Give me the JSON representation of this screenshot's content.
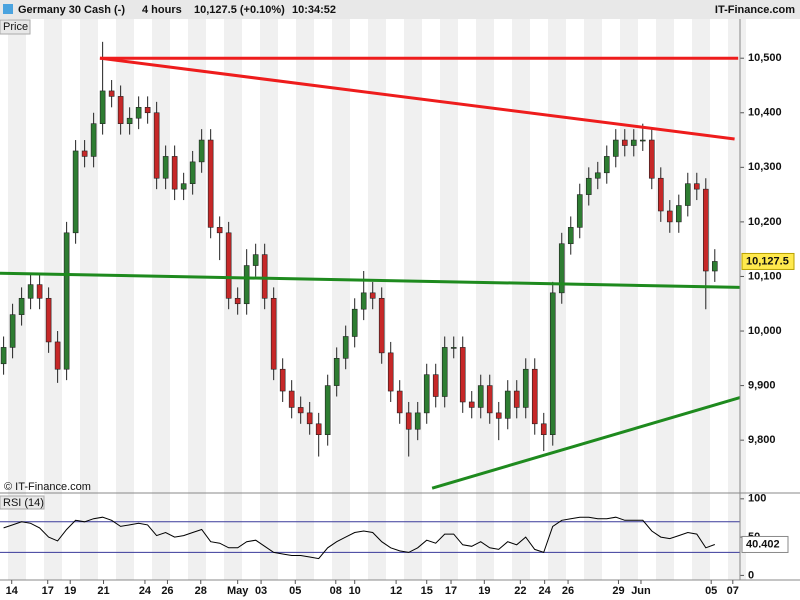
{
  "header": {
    "instrument": "Germany 30 Cash (-)",
    "interval": "4 hours",
    "quote": "10,127.5 (+0.10%)",
    "time": "10:34:52",
    "brand": "IT-Finance.com"
  },
  "chart_data": [
    {
      "type": "candlestick",
      "ylabel": "Price",
      "watermark": "© IT-Finance.com",
      "up_color": "#2e7d32",
      "down_color": "#c62828",
      "open": [
        9940,
        9970,
        10030,
        10060,
        10085,
        10060,
        9980,
        9930,
        10180,
        10330,
        10320,
        10380,
        10440,
        10430,
        10380,
        10390,
        10410,
        10400,
        10280,
        10320,
        10260,
        10270,
        10310,
        10350,
        10190,
        10180,
        10060,
        10050,
        10120,
        10140,
        10060,
        9930,
        9890,
        9860,
        9850,
        9830,
        9810,
        9900,
        9950,
        9990,
        10040,
        10070,
        10060,
        9960,
        9890,
        9850,
        9820,
        9850,
        9920,
        9880,
        9970,
        9970,
        9870,
        9860,
        9900,
        9850,
        9840,
        9890,
        9860,
        9930,
        9830,
        9810,
        10070,
        10160,
        10190,
        10250,
        10280,
        10290,
        10320,
        10350,
        10340,
        10350,
        10350,
        10280,
        10220,
        10200,
        10230,
        10270,
        10260,
        10110
      ],
      "high": [
        9990,
        10050,
        10080,
        10105,
        10105,
        10080,
        10000,
        10200,
        10350,
        10350,
        10400,
        10530,
        10460,
        10450,
        10410,
        10430,
        10430,
        10420,
        10340,
        10340,
        10290,
        10330,
        10370,
        10370,
        10210,
        10200,
        10080,
        10150,
        10160,
        10160,
        10080,
        9950,
        9910,
        9880,
        9870,
        9850,
        9920,
        9970,
        10010,
        10060,
        10110,
        10090,
        10080,
        9980,
        9910,
        9870,
        9870,
        9940,
        9940,
        9990,
        9990,
        9990,
        9890,
        9920,
        9920,
        9870,
        9910,
        9910,
        9950,
        9950,
        9850,
        10090,
        10180,
        10210,
        10270,
        10300,
        10310,
        10340,
        10370,
        10370,
        10370,
        10380,
        10370,
        10300,
        10240,
        10250,
        10290,
        10290,
        10280,
        10150
      ],
      "low": [
        9920,
        9950,
        10010,
        10040,
        10040,
        9960,
        9905,
        9910,
        10160,
        10300,
        10300,
        10360,
        10410,
        10360,
        10360,
        10370,
        10380,
        10260,
        10260,
        10240,
        10240,
        10250,
        10290,
        10170,
        10130,
        10040,
        10030,
        10030,
        10100,
        10040,
        9910,
        9870,
        9840,
        9830,
        9810,
        9770,
        9790,
        9880,
        9930,
        9970,
        10020,
        10040,
        9940,
        9870,
        9830,
        9770,
        9800,
        9830,
        9860,
        9860,
        9950,
        9850,
        9840,
        9840,
        9830,
        9800,
        9820,
        9840,
        9840,
        9810,
        9780,
        9790,
        10050,
        10140,
        10170,
        10230,
        10260,
        10270,
        10300,
        10320,
        10320,
        10330,
        10260,
        10200,
        10180,
        10180,
        10210,
        10240,
        10040,
        10090
      ],
      "close": [
        9970,
        10030,
        10060,
        10085,
        10060,
        9980,
        9930,
        10180,
        10330,
        10320,
        10380,
        10440,
        10430,
        10380,
        10390,
        10410,
        10400,
        10280,
        10320,
        10260,
        10270,
        10310,
        10350,
        10190,
        10180,
        10060,
        10050,
        10120,
        10140,
        10060,
        9930,
        9890,
        9860,
        9850,
        9830,
        9810,
        9900,
        9950,
        9990,
        10040,
        10070,
        10060,
        9960,
        9890,
        9850,
        9820,
        9850,
        9920,
        9880,
        9970,
        9970,
        9870,
        9860,
        9900,
        9850,
        9840,
        9890,
        9860,
        9930,
        9830,
        9810,
        10070,
        10160,
        10190,
        10250,
        10280,
        10290,
        10320,
        10350,
        10340,
        10350,
        10350,
        10280,
        10220,
        10200,
        10230,
        10270,
        10260,
        10110,
        10127.5
      ],
      "last_price": {
        "value": 10127.5,
        "label": "10,127.5"
      },
      "xlim": [
        -0.4,
        81.8
      ],
      "ylim": [
        9705,
        10570
      ],
      "yticks": [
        {
          "value": 9800,
          "label": "9,800"
        },
        {
          "value": 9900,
          "label": "9,900"
        },
        {
          "value": 10000,
          "label": "10,000"
        },
        {
          "value": 10100,
          "label": "10,100"
        },
        {
          "value": 10200,
          "label": "10,200"
        },
        {
          "value": 10300,
          "label": "10,300"
        },
        {
          "value": 10400,
          "label": "10,400"
        },
        {
          "value": 10500,
          "label": "10,500"
        }
      ],
      "xticks": [
        {
          "value": 0.9,
          "label": "14"
        },
        {
          "value": 4.9,
          "label": "17"
        },
        {
          "value": 7.4,
          "label": "19"
        },
        {
          "value": 11.1,
          "label": "21"
        },
        {
          "value": 15.7,
          "label": "24"
        },
        {
          "value": 18.2,
          "label": "26"
        },
        {
          "value": 21.9,
          "label": "28"
        },
        {
          "value": 26,
          "label": "May"
        },
        {
          "value": 28.6,
          "label": "03"
        },
        {
          "value": 32.4,
          "label": "05"
        },
        {
          "value": 36.9,
          "label": "08"
        },
        {
          "value": 39,
          "label": "10"
        },
        {
          "value": 43.6,
          "label": "12"
        },
        {
          "value": 47,
          "label": "15"
        },
        {
          "value": 49.7,
          "label": "17"
        },
        {
          "value": 53.4,
          "label": "19"
        },
        {
          "value": 57.4,
          "label": "22"
        },
        {
          "value": 60.1,
          "label": "24"
        },
        {
          "value": 62.7,
          "label": "26"
        },
        {
          "value": 68.3,
          "label": "29"
        },
        {
          "value": 70.8,
          "label": "Jun"
        },
        {
          "value": 78.6,
          "label": "05"
        },
        {
          "value": 81,
          "label": "07"
        }
      ],
      "lines": [
        {
          "color": "#ee1c1c",
          "x": [
            10.7,
            81.6
          ],
          "y": [
            10500,
            10500
          ]
        },
        {
          "color": "#ee1c1c",
          "x": [
            10.7,
            81.2
          ],
          "y": [
            10500,
            10352
          ]
        },
        {
          "color": "#1e8a1e",
          "x": [
            -0.4,
            81.8
          ],
          "y": [
            10106,
            10080
          ]
        },
        {
          "color": "#1e8a1e",
          "x": [
            47.6,
            81.8
          ],
          "y": [
            9712,
            9878
          ]
        }
      ]
    },
    {
      "type": "line",
      "ylabel": "RSI (14)",
      "series": [
        {
          "name": "RSI (14)",
          "color": "#000000",
          "values": [
            62,
            66,
            70,
            68,
            62,
            50,
            45,
            60,
            72,
            70,
            74,
            76,
            72,
            64,
            66,
            68,
            66,
            52,
            56,
            50,
            52,
            56,
            60,
            44,
            42,
            36,
            36,
            44,
            46,
            38,
            30,
            28,
            26,
            26,
            24,
            22,
            36,
            44,
            50,
            56,
            58,
            56,
            44,
            36,
            32,
            30,
            36,
            46,
            42,
            54,
            54,
            40,
            38,
            44,
            36,
            34,
            44,
            40,
            50,
            34,
            30,
            64,
            72,
            74,
            76,
            76,
            74,
            74,
            76,
            72,
            72,
            72,
            58,
            50,
            48,
            52,
            56,
            54,
            36,
            40.402
          ]
        }
      ],
      "levels": [
        70,
        30
      ],
      "level_color": "#3a3a9a",
      "ylim": [
        -6,
        105
      ],
      "yticks": [
        0,
        50,
        100
      ]
    }
  ]
}
